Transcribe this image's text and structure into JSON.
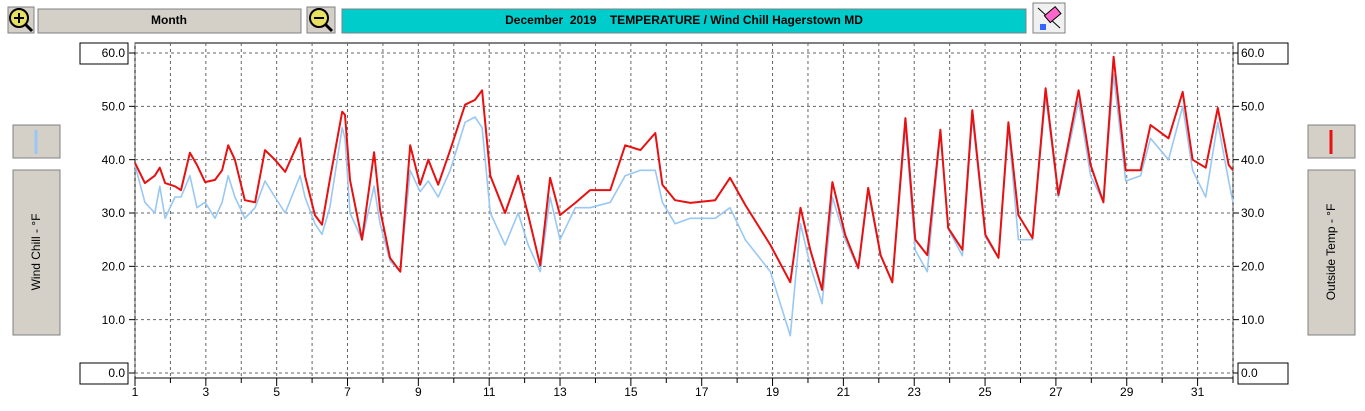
{
  "toolbar": {
    "period": "Month"
  },
  "chart_data": {
    "type": "line",
    "title": "December  2019    TEMPERATURE / Wind Chill Hagerstown MD",
    "xlim": [
      1,
      32
    ],
    "xticks": [
      1,
      3,
      5,
      7,
      9,
      11,
      13,
      15,
      17,
      19,
      21,
      23,
      25,
      27,
      29,
      31
    ],
    "minor_xticks": [
      2,
      4,
      6,
      8,
      10,
      12,
      14,
      16,
      18,
      20,
      22,
      24,
      26,
      28,
      30,
      32
    ],
    "ylim": [
      0,
      60
    ],
    "yticks": [
      {
        "value": 0,
        "label": "0.0"
      },
      {
        "value": 10,
        "label": "10.0"
      },
      {
        "value": 20,
        "label": "20.0"
      },
      {
        "value": 30,
        "label": "30.0"
      },
      {
        "value": 40,
        "label": "40.0"
      },
      {
        "value": 50,
        "label": "50.0"
      },
      {
        "value": 60,
        "label": "60.0"
      }
    ],
    "y2lim": [
      0,
      60
    ],
    "y2ticks": [
      {
        "value": 0,
        "label": "0.0"
      },
      {
        "value": 10,
        "label": "10.0"
      },
      {
        "value": 20,
        "label": "20.0"
      },
      {
        "value": 30,
        "label": "30.0"
      },
      {
        "value": 40,
        "label": "40.0"
      },
      {
        "value": 50,
        "label": "50.0"
      },
      {
        "value": 60,
        "label": "60.0"
      }
    ],
    "grid": true,
    "x": [
      1.0,
      1.28,
      1.56,
      1.7,
      1.85,
      2.13,
      2.3,
      2.55,
      2.75,
      2.98,
      3.26,
      3.46,
      3.63,
      3.82,
      4.1,
      4.39,
      4.67,
      4.95,
      5.24,
      5.66,
      5.8,
      6.08,
      6.28,
      6.5,
      6.85,
      6.93,
      7.07,
      7.41,
      7.75,
      7.92,
      8.2,
      8.49,
      8.77,
      9.05,
      9.28,
      9.56,
      9.9,
      10.32,
      10.6,
      10.8,
      11.03,
      11.45,
      11.82,
      12.1,
      12.44,
      12.72,
      13.0,
      13.43,
      13.85,
      14.42,
      14.84,
      15.27,
      15.69,
      15.89,
      16.25,
      16.68,
      17.38,
      17.8,
      18.23,
      18.94,
      19.5,
      19.79,
      20.07,
      20.4,
      20.69,
      21.05,
      21.42,
      21.7,
      22.05,
      22.38,
      22.75,
      23.03,
      23.37,
      23.74,
      23.96,
      24.36,
      24.64,
      25.01,
      25.38,
      25.66,
      25.94,
      26.34,
      26.71,
      27.07,
      27.64,
      27.98,
      28.34,
      28.63,
      28.97,
      29.39,
      29.67,
      30.18,
      30.58,
      30.86,
      31.23,
      31.57,
      31.88,
      32
    ],
    "series": [
      {
        "name": "Wind Chill - °F",
        "color": "#99c8f4",
        "axis": "y",
        "values": [
          39,
          32,
          30,
          35,
          29,
          33,
          33,
          37,
          31,
          32,
          29,
          32,
          37,
          33,
          29,
          31,
          36,
          33,
          30,
          37,
          33,
          28,
          26,
          31,
          46,
          44,
          30,
          25,
          35,
          28,
          21,
          19,
          38,
          34,
          36,
          33,
          38,
          47,
          48,
          46,
          30,
          24,
          30,
          24,
          19,
          33,
          25,
          31,
          31,
          32,
          37,
          38,
          38,
          32,
          28,
          29,
          29,
          31,
          25,
          19,
          7,
          28,
          20,
          13,
          33,
          25,
          19.5,
          34,
          22,
          17,
          46,
          23,
          19,
          45,
          27,
          22,
          48,
          25.5,
          21.5,
          46,
          25,
          25,
          52,
          33,
          51,
          37,
          32,
          56,
          36,
          37,
          44,
          40,
          50,
          38,
          33,
          47,
          36,
          32
        ]
      },
      {
        "name": "Outside Temp - °F",
        "color": "#e81010",
        "axis": "y2",
        "values": [
          39.4,
          35.6,
          37,
          38.5,
          35.6,
          35,
          34.3,
          41.3,
          39,
          35.8,
          36.2,
          38,
          42.7,
          40,
          32.4,
          32,
          41.8,
          40,
          37.7,
          44,
          37,
          29.6,
          27.8,
          36.2,
          49,
          48.4,
          36.2,
          25,
          41.4,
          30.6,
          21.6,
          19,
          42.7,
          35.3,
          40,
          35.3,
          41.8,
          50.3,
          51.2,
          53,
          37,
          30,
          37,
          29.6,
          20.2,
          36.6,
          29.6,
          31.9,
          34.3,
          34.3,
          42.7,
          41.8,
          45,
          35.3,
          32.4,
          31.9,
          32.4,
          36.6,
          31.5,
          24,
          17,
          31,
          23,
          15.6,
          35.8,
          25.9,
          19.7,
          34.7,
          22.1,
          17,
          47.8,
          25,
          22.1,
          45.6,
          27.2,
          23.1,
          49.3,
          25.9,
          21.6,
          47,
          29.6,
          25.3,
          53.4,
          33.4,
          53,
          39,
          32,
          59.3,
          38,
          38,
          46.5,
          44,
          52.7,
          40,
          38.5,
          49.7,
          39,
          38
        ]
      }
    ]
  }
}
